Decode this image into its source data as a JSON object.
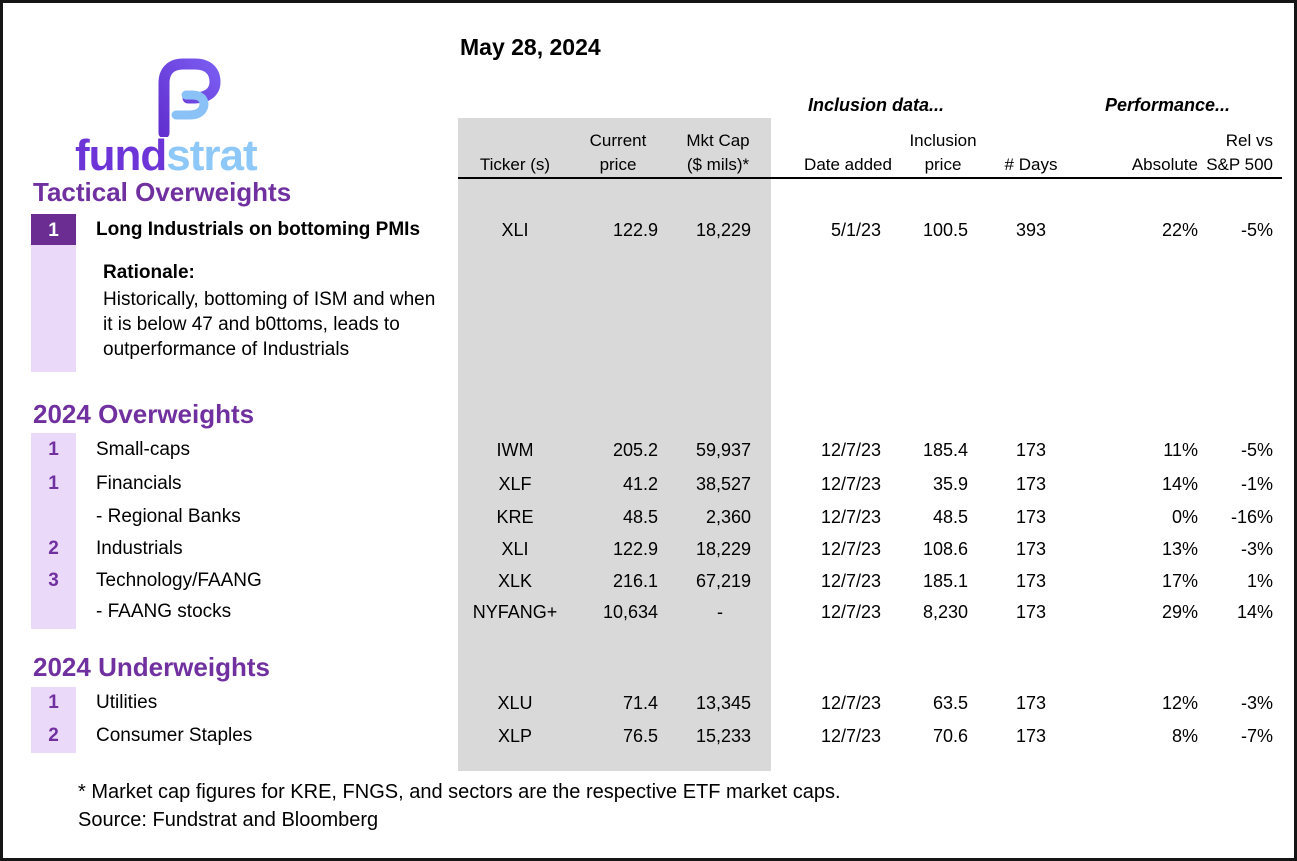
{
  "page": {
    "date": "May 28, 2024"
  },
  "brand": {
    "prefix": "fund",
    "suffix": "strat"
  },
  "colors": {
    "heading_purple": "#7030a0",
    "badge_purple": "#6b2d91",
    "lavender_strip": "#ead9f8",
    "column_gray": "#d9d9d9",
    "brand_purple": "#6d35d8",
    "brand_blue": "#8ec8f8"
  },
  "table": {
    "group_headers": {
      "inclusion": "Inclusion data...",
      "performance": "Performance..."
    },
    "columns": {
      "ticker": "Ticker (s)",
      "current_1": "Current",
      "current_2": "price",
      "mktcap_1": "Mkt Cap",
      "mktcap_2": "($ mils)*",
      "date_added": "Date added",
      "inclusion_1": "Inclusion",
      "inclusion_2": "price",
      "days": "# Days",
      "absolute": "Absolute",
      "rel_1": "Rel vs",
      "rel_2": "S&P 500"
    }
  },
  "sections": {
    "tactical": {
      "heading": "Tactical Overweights",
      "rows": [
        {
          "num": "1",
          "label": "Long Industrials on bottoming PMIs",
          "ticker": "XLI",
          "price": "122.9",
          "mktcap": "18,229",
          "date_added": "5/1/23",
          "inclusion_price": "100.5",
          "days": "393",
          "absolute": "22%",
          "rel_sp500": "-5%",
          "emphasis": true,
          "badge": "dark"
        }
      ],
      "rationale": {
        "title": "Rationale:",
        "lines": [
          "Historically, bottoming of ISM and when",
          "it is below 47 and b0ttoms, leads to",
          "outperformance of Industrials"
        ]
      }
    },
    "overweights": {
      "heading": "2024 Overweights",
      "rows": [
        {
          "num": "1",
          "label": "Small-caps",
          "ticker": "IWM",
          "price": "205.2",
          "mktcap": "59,937",
          "date_added": "12/7/23",
          "inclusion_price": "185.4",
          "days": "173",
          "absolute": "11%",
          "rel_sp500": "-5%"
        },
        {
          "num": "1",
          "label": "Financials",
          "ticker": "XLF",
          "price": "41.2",
          "mktcap": "38,527",
          "date_added": "12/7/23",
          "inclusion_price": "35.9",
          "days": "173",
          "absolute": "14%",
          "rel_sp500": "-1%"
        },
        {
          "num": "",
          "label": "- Regional Banks",
          "ticker": "KRE",
          "price": "48.5",
          "mktcap": "2,360",
          "date_added": "12/7/23",
          "inclusion_price": "48.5",
          "days": "173",
          "absolute": "0%",
          "rel_sp500": "-16%"
        },
        {
          "num": "2",
          "label": "Industrials",
          "ticker": "XLI",
          "price": "122.9",
          "mktcap": "18,229",
          "date_added": "12/7/23",
          "inclusion_price": "108.6",
          "days": "173",
          "absolute": "13%",
          "rel_sp500": "-3%"
        },
        {
          "num": "3",
          "label": "Technology/FAANG",
          "ticker": "XLK",
          "price": "216.1",
          "mktcap": "67,219",
          "date_added": "12/7/23",
          "inclusion_price": "185.1",
          "days": "173",
          "absolute": "17%",
          "rel_sp500": "1%"
        },
        {
          "num": "",
          "label": "- FAANG stocks",
          "ticker": "NYFANG+",
          "price": "10,634",
          "mktcap": "-",
          "date_added": "12/7/23",
          "inclusion_price": "8,230",
          "days": "173",
          "absolute": "29%",
          "rel_sp500": "14%"
        }
      ]
    },
    "underweights": {
      "heading": "2024 Underweights",
      "rows": [
        {
          "num": "1",
          "label": "Utilities",
          "ticker": "XLU",
          "price": "71.4",
          "mktcap": "13,345",
          "date_added": "12/7/23",
          "inclusion_price": "63.5",
          "days": "173",
          "absolute": "12%",
          "rel_sp500": "-3%"
        },
        {
          "num": "2",
          "label": "Consumer Staples",
          "ticker": "XLP",
          "price": "76.5",
          "mktcap": "15,233",
          "date_added": "12/7/23",
          "inclusion_price": "70.6",
          "days": "173",
          "absolute": "8%",
          "rel_sp500": "-7%"
        }
      ]
    }
  },
  "footnotes": [
    "* Market cap figures for KRE, FNGS, and sectors are the respective ETF market caps.",
    "Source: Fundstrat and Bloomberg"
  ]
}
